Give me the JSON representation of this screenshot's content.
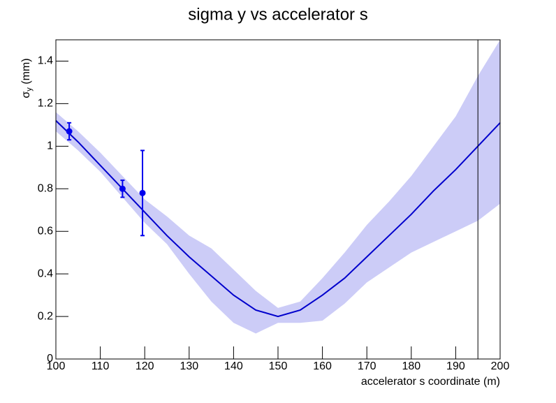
{
  "chart_data": {
    "type": "line",
    "title": "sigma y vs accelerator s",
    "x_label": "accelerator s coordinate (m)",
    "y_label": {
      "symbol": "σ",
      "subscript": "y",
      "unit": "(mm)"
    },
    "xlim": [
      100,
      200
    ],
    "ylim": [
      0,
      1.5
    ],
    "xticks": [
      100,
      110,
      120,
      130,
      140,
      150,
      160,
      170,
      180,
      190,
      200
    ],
    "yticks": [
      0,
      0.2,
      0.4,
      0.6,
      0.8,
      1,
      1.2,
      1.4
    ],
    "x": [
      100,
      105,
      110,
      115,
      120,
      125,
      130,
      135,
      140,
      145,
      150,
      155,
      160,
      165,
      170,
      175,
      180,
      185,
      190,
      195,
      200
    ],
    "series": [
      {
        "color": "#0000cc",
        "values": [
          1.12,
          1.02,
          0.91,
          0.8,
          0.69,
          0.58,
          0.48,
          0.39,
          0.3,
          0.23,
          0.2,
          0.23,
          0.3,
          0.38,
          0.48,
          0.58,
          0.68,
          0.79,
          0.89,
          1.0,
          1.11
        ]
      }
    ],
    "band": {
      "color": "#ccccf7",
      "lower": [
        1.07,
        0.98,
        0.88,
        0.76,
        0.64,
        0.54,
        0.4,
        0.27,
        0.17,
        0.12,
        0.17,
        0.17,
        0.18,
        0.26,
        0.36,
        0.43,
        0.5,
        0.55,
        0.6,
        0.65,
        0.73
      ],
      "upper": [
        1.16,
        1.07,
        0.97,
        0.86,
        0.75,
        0.67,
        0.58,
        0.52,
        0.42,
        0.32,
        0.24,
        0.27,
        0.38,
        0.5,
        0.63,
        0.74,
        0.86,
        1.0,
        1.14,
        1.33,
        1.5
      ]
    },
    "points": {
      "color": "#0000ee",
      "x": [
        103,
        115,
        119.5
      ],
      "values": [
        1.07,
        0.8,
        0.78
      ],
      "errors": [
        0.04,
        0.04,
        0.2
      ]
    },
    "vline": 195
  }
}
